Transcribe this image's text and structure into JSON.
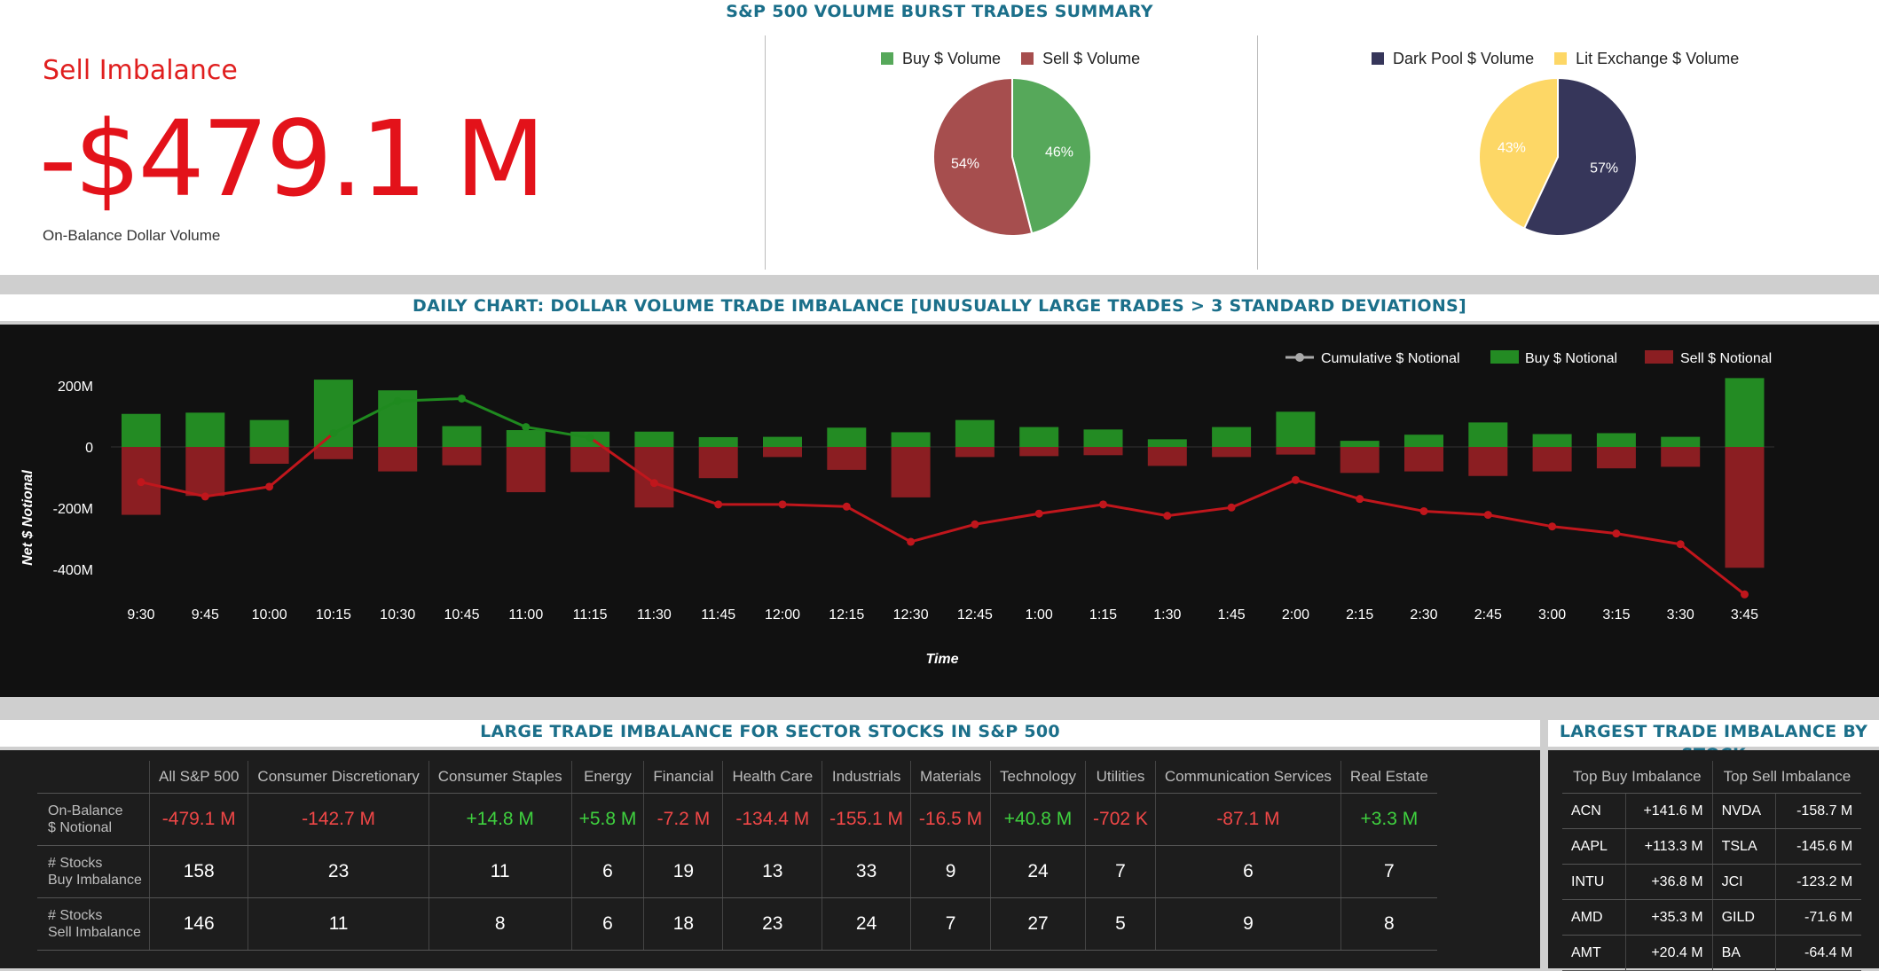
{
  "summary": {
    "title": "S&P 500 VOLUME BURST TRADES SUMMARY",
    "imbalance_label": "Sell Imbalance",
    "imbalance_value": "-$479.1 M",
    "imbalance_sub": "On-Balance Dollar Volume"
  },
  "pie_buy_sell": {
    "legend": [
      {
        "label": "Buy $ Volume",
        "color": "#56a85a"
      },
      {
        "label": "Sell $ Volume",
        "color": "#a64e4e"
      }
    ],
    "slices": [
      {
        "label": "46%",
        "value": 46,
        "color": "#56a85a"
      },
      {
        "label": "54%",
        "value": 54,
        "color": "#a64e4e"
      }
    ]
  },
  "pie_dark_lit": {
    "legend": [
      {
        "label": "Dark Pool $ Volume",
        "color": "#36365a"
      },
      {
        "label": "Lit Exchange $ Volume",
        "color": "#fdd766"
      }
    ],
    "slices": [
      {
        "label": "57%",
        "value": 57,
        "color": "#36365a"
      },
      {
        "label": "43%",
        "value": 43,
        "color": "#fdd766"
      }
    ]
  },
  "daily": {
    "title": "DAILY CHART: DOLLAR VOLUME TRADE IMBALANCE [UNUSUALLY LARGE TRADES > 3 STANDARD DEVIATIONS]"
  },
  "chart_data": {
    "type": "bar",
    "xlabel": "Time",
    "ylabel": "Net $ Notional",
    "ylim": [
      -450,
      250
    ],
    "yticks": [
      {
        "v": 200,
        "label": "200M"
      },
      {
        "v": 0,
        "label": "0"
      },
      {
        "v": -200,
        "label": "-200M"
      },
      {
        "v": -400,
        "label": "-400M"
      }
    ],
    "categories": [
      "9:30",
      "9:45",
      "10:00",
      "10:15",
      "10:30",
      "10:45",
      "11:00",
      "11:15",
      "11:30",
      "11:45",
      "12:00",
      "12:15",
      "12:30",
      "12:45",
      "1:00",
      "1:15",
      "1:30",
      "1:45",
      "2:00",
      "2:15",
      "2:30",
      "2:45",
      "3:00",
      "3:15",
      "3:30",
      "3:45"
    ],
    "series": [
      {
        "name": "Cumulative $ Notional",
        "type": "line",
        "color": "#aaaaaa",
        "pos_color": "#1f8a1f",
        "neg_color": "#c0161c",
        "values": [
          -115,
          -162,
          -130,
          45,
          150,
          158,
          65,
          30,
          -118,
          -188,
          -188,
          -195,
          -310,
          -253,
          -218,
          -188,
          -225,
          -198,
          -108,
          -170,
          -210,
          -222,
          -260,
          -283,
          -318,
          -482
        ]
      },
      {
        "name": "Buy $ Notional",
        "type": "bar",
        "color": "#238b23",
        "values": [
          108,
          112,
          88,
          220,
          185,
          68,
          55,
          50,
          50,
          32,
          33,
          63,
          48,
          88,
          65,
          57,
          25,
          65,
          115,
          20,
          40,
          80,
          42,
          45,
          33,
          225
        ]
      },
      {
        "name": "Sell $ Notional",
        "type": "bar",
        "color": "#8b1e22",
        "values": [
          -222,
          -160,
          -55,
          -40,
          -80,
          -60,
          -148,
          -82,
          -198,
          -102,
          -33,
          -75,
          -165,
          -33,
          -30,
          -27,
          -62,
          -33,
          -25,
          -85,
          -80,
          -95,
          -80,
          -70,
          -65,
          -395
        ]
      }
    ]
  },
  "sector": {
    "title": "LARGE TRADE IMBALANCE FOR SECTOR STOCKS IN S&P 500",
    "headers": [
      "",
      "All S&P 500",
      "Consumer Discretionary",
      "Consumer Staples",
      "Energy",
      "Financial",
      "Health Care",
      "Industrials",
      "Materials",
      "Technology",
      "Utilities",
      "Communication Services",
      "Real Estate"
    ],
    "rows": [
      {
        "label1": "On-Balance",
        "label2": "$ Notional",
        "cells": [
          "-479.1 M",
          "-142.7 M",
          "+14.8 M",
          "+5.8 M",
          "-7.2 M",
          "-134.4 M",
          "-155.1 M",
          "-16.5 M",
          "+40.8 M",
          "-702 K",
          "-87.1 M",
          "+3.3 M"
        ]
      },
      {
        "label1": "# Stocks",
        "label2": "Buy Imbalance",
        "cells": [
          "158",
          "23",
          "11",
          "6",
          "19",
          "13",
          "33",
          "9",
          "24",
          "7",
          "6",
          "7"
        ]
      },
      {
        "label1": "# Stocks",
        "label2": "Sell Imbalance",
        "cells": [
          "146",
          "11",
          "8",
          "6",
          "18",
          "23",
          "24",
          "7",
          "27",
          "5",
          "9",
          "8"
        ]
      }
    ]
  },
  "stocks": {
    "title": "LARGEST TRADE IMBALANCE BY STOCK",
    "headers": [
      "Top Buy Imbalance",
      "Top Sell Imbalance"
    ],
    "rows": [
      {
        "buy_ticker": "ACN",
        "buy_value": "+141.6 M",
        "sell_ticker": "NVDA",
        "sell_value": "-158.7 M"
      },
      {
        "buy_ticker": "AAPL",
        "buy_value": "+113.3 M",
        "sell_ticker": "TSLA",
        "sell_value": "-145.6 M"
      },
      {
        "buy_ticker": "INTU",
        "buy_value": "+36.8 M",
        "sell_ticker": "JCI",
        "sell_value": "-123.2 M"
      },
      {
        "buy_ticker": "AMD",
        "buy_value": "+35.3 M",
        "sell_ticker": "GILD",
        "sell_value": "-71.6 M"
      },
      {
        "buy_ticker": "AMT",
        "buy_value": "+20.4 M",
        "sell_ticker": "BA",
        "sell_value": "-64.4 M"
      }
    ]
  }
}
